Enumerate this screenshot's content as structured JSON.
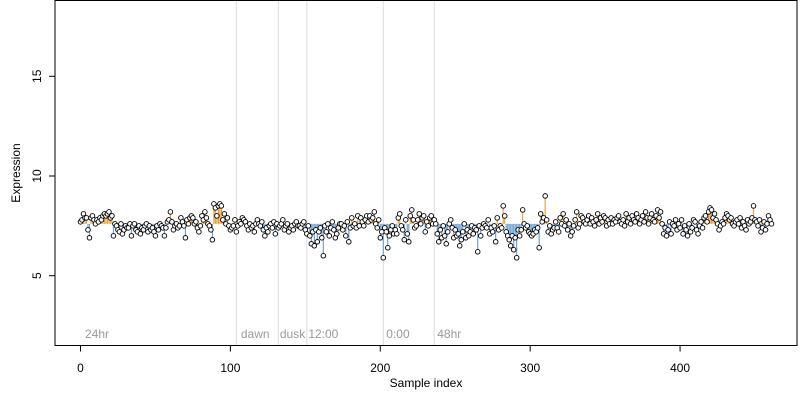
{
  "chart_data": {
    "type": "scatter",
    "xlabel": "Sample index",
    "ylabel": "Expression",
    "xlim": [
      -17,
      478
    ],
    "ylim": [
      1.5,
      18.8
    ],
    "xticks": [
      0,
      100,
      200,
      300,
      400
    ],
    "yticks": [
      5,
      10,
      15
    ],
    "baseline": 7.6,
    "colors": {
      "above": "#e8a33d",
      "below": "#6fa1d6",
      "grid": "#dddddd",
      "point_fill": "#ffffff",
      "point_stroke": "#000000"
    },
    "vlines": [
      104,
      132,
      151,
      202,
      236
    ],
    "annotations": [
      {
        "x": 3,
        "label": "24hr"
      },
      {
        "x": 107,
        "label": "dawn"
      },
      {
        "x": 133,
        "label": "dusk"
      },
      {
        "x": 152,
        "label": "12:00"
      },
      {
        "x": 204,
        "label": "0:00"
      },
      {
        "x": 238,
        "label": "48hr"
      }
    ],
    "y": [
      7.7,
      7.8,
      8.1,
      7.9,
      7.9,
      7.3,
      6.9,
      7.9,
      8.0,
      7.8,
      7.6,
      7.8,
      7.7,
      7.9,
      7.8,
      8.0,
      8.1,
      8.0,
      8.1,
      8.2,
      7.9,
      8.0,
      7.0,
      7.6,
      7.5,
      7.3,
      7.2,
      7.6,
      7.1,
      7.3,
      7.5,
      7.4,
      7.4,
      7.6,
      7.0,
      7.5,
      7.6,
      7.3,
      7.2,
      7.5,
      7.1,
      7.4,
      7.3,
      7.5,
      7.6,
      7.2,
      7.5,
      7.3,
      7.4,
      7.2,
      7.0,
      7.5,
      7.3,
      7.6,
      7.5,
      7.4,
      7.0,
      7.4,
      7.7,
      7.8,
      8.2,
      7.7,
      7.3,
      7.5,
      7.6,
      7.4,
      7.5,
      7.9,
      7.7,
      7.5,
      6.9,
      7.8,
      7.6,
      7.9,
      8.0,
      7.9,
      7.6,
      7.7,
      7.4,
      7.2,
      7.5,
      8.0,
      7.8,
      8.2,
      7.9,
      7.6,
      7.5,
      7.3,
      6.8,
      8.6,
      8.4,
      8.0,
      8.5,
      8.6,
      8.5,
      7.8,
      8.1,
      7.6,
      7.9,
      7.5,
      7.3,
      7.4,
      7.5,
      7.8,
      7.2,
      7.5,
      7.7,
      7.6,
      7.9,
      7.8,
      7.7,
      7.5,
      7.3,
      7.6,
      7.4,
      7.5,
      7.2,
      7.6,
      7.8,
      7.6,
      7.5,
      7.7,
      7.3,
      7.0,
      7.4,
      7.2,
      7.5,
      7.6,
      7.4,
      7.7,
      7.1,
      7.6,
      7.4,
      7.5,
      7.6,
      7.8,
      7.3,
      7.5,
      7.6,
      7.2,
      7.4,
      7.5,
      7.3,
      7.6,
      7.7,
      7.5,
      7.5,
      7.4,
      7.6,
      7.7,
      7.3,
      7.1,
      7.5,
      7.0,
      6.6,
      7.2,
      6.5,
      7.3,
      6.7,
      7.2,
      7.4,
      6.9,
      6.0,
      7.5,
      7.2,
      7.6,
      7.0,
      7.4,
      7.7,
      7.3,
      6.9,
      7.1,
      7.4,
      7.6,
      7.6,
      7.3,
      7.5,
      7.0,
      7.7,
      6.7,
      7.4,
      7.9,
      7.5,
      7.6,
      7.4,
      8.0,
      7.5,
      7.9,
      7.7,
      7.5,
      7.8,
      8.0,
      7.7,
      8.0,
      7.8,
      7.9,
      8.2,
      7.6,
      7.4,
      7.8,
      6.9,
      7.2,
      5.9,
      7.4,
      7.2,
      6.4,
      7.0,
      7.3,
      7.5,
      7.1,
      7.3,
      7.1,
      7.9,
      8.1,
      7.5,
      7.3,
      6.8,
      7.8,
      7.1,
      6.7,
      8.0,
      8.3,
      7.8,
      7.4,
      7.5,
      7.8,
      8.1,
      7.6,
      7.9,
      8.0,
      7.2,
      7.7,
      7.5,
      7.9,
      8.0,
      7.6,
      7.8,
      7.6,
      7.1,
      6.7,
      7.3,
      6.9,
      7.5,
      7.0,
      6.6,
      7.2,
      7.6,
      7.8,
      7.4,
      6.9,
      7.3,
      7.0,
      7.1,
      6.5,
      6.8,
      7.2,
      7.6,
      6.9,
      7.3,
      7.0,
      7.2,
      7.5,
      7.1,
      7.4,
      7.3,
      6.2,
      7.5,
      7.0,
      7.4,
      7.6,
      7.5,
      7.4,
      7.8,
      7.1,
      7.4,
      7.2,
      7.5,
      6.7,
      7.9,
      7.3,
      7.5,
      7.4,
      8.5,
      8.0,
      7.2,
      7.0,
      6.8,
      6.5,
      7.0,
      6.3,
      6.9,
      5.9,
      7.3,
      7.0,
      7.3,
      8.3,
      7.6,
      7.4,
      7.5,
      7.2,
      7.1,
      7.0,
      7.1,
      7.3,
      7.2,
      7.4,
      6.4,
      8.1,
      7.7,
      7.9,
      9.0,
      7.8,
      7.2,
      7.5,
      7.1,
      7.3,
      7.4,
      7.7,
      7.4,
      7.2,
      7.9,
      7.6,
      8.1,
      7.5,
      7.8,
      7.3,
      7.6,
      7.0,
      7.2,
      7.5,
      7.8,
      8.2,
      7.4,
      7.6,
      8.0,
      7.9,
      7.7,
      7.6,
      7.8,
      8.0,
      7.6,
      7.9,
      7.7,
      7.5,
      7.8,
      8.1,
      7.6,
      7.9,
      7.7,
      8.0,
      7.9,
      7.5,
      7.8,
      7.6,
      7.9,
      7.6,
      7.8,
      7.7,
      7.9,
      8.0,
      7.7,
      7.6,
      7.8,
      7.5,
      8.1,
      7.7,
      7.9,
      7.6,
      8.0,
      7.8,
      7.7,
      8.1,
      7.9,
      7.6,
      7.8,
      8.0,
      7.7,
      8.2,
      7.9,
      7.6,
      7.9,
      8.1,
      7.8,
      7.7,
      8.0,
      8.3,
      7.9,
      8.2,
      7.6,
      7.1,
      7.4,
      7.0,
      7.3,
      7.7,
      7.1,
      7.6,
      7.5,
      7.8,
      7.3,
      7.6,
      7.4,
      7.8,
      7.1,
      7.5,
      7.3,
      7.0,
      7.6,
      7.2,
      7.4,
      7.8,
      7.7,
      7.3,
      7.1,
      7.5,
      7.7,
      7.4,
      7.9,
      8.0,
      7.7,
      8.2,
      8.4,
      8.3,
      7.9,
      8.1,
      7.8,
      7.6,
      7.3,
      7.5,
      7.7,
      7.6,
      7.9,
      8.1,
      8.0,
      7.8,
      7.9,
      7.6,
      7.5,
      7.7,
      7.8,
      7.6,
      7.9,
      7.4,
      7.7,
      7.5,
      7.3,
      7.8,
      7.6,
      7.7,
      7.9,
      8.5,
      7.8,
      7.7,
      7.5,
      7.8,
      7.2,
      7.4,
      7.7,
      7.3,
      7.6,
      8.0,
      7.8,
      7.6
    ]
  }
}
